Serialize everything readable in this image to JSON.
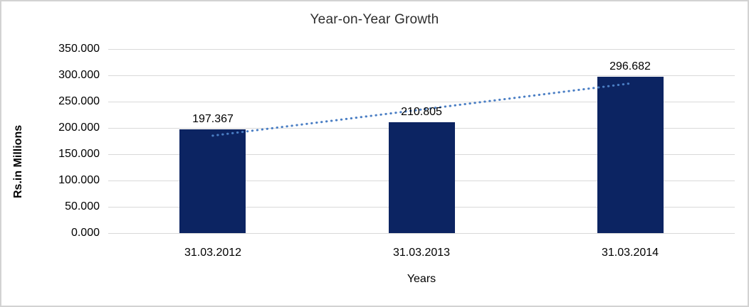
{
  "chart_data": {
    "type": "bar",
    "title": "Year-on-Year Growth",
    "xlabel": "Years",
    "ylabel": "Rs.in Millions",
    "categories": [
      "31.03.2012",
      "31.03.2013",
      "31.03.2014"
    ],
    "values": [
      197.367,
      210.805,
      296.682
    ],
    "data_labels": [
      "197.367",
      "210.805",
      "296.682"
    ],
    "ylim": [
      0,
      350
    ],
    "yticks": [
      {
        "value": 0,
        "label": "0.000"
      },
      {
        "value": 50,
        "label": "50.000"
      },
      {
        "value": 100,
        "label": "100.000"
      },
      {
        "value": 150,
        "label": "150.000"
      },
      {
        "value": 200,
        "label": "200.000"
      },
      {
        "value": 250,
        "label": "250.000"
      },
      {
        "value": 300,
        "label": "300.000"
      },
      {
        "value": 350,
        "label": "350.000"
      }
    ],
    "grid": true,
    "legend": "none",
    "bar_color": "#0c2462",
    "gridline_color": "#d9d9d9",
    "trendline": {
      "type": "linear",
      "style": "dotted",
      "color": "#4a7ec4"
    }
  }
}
